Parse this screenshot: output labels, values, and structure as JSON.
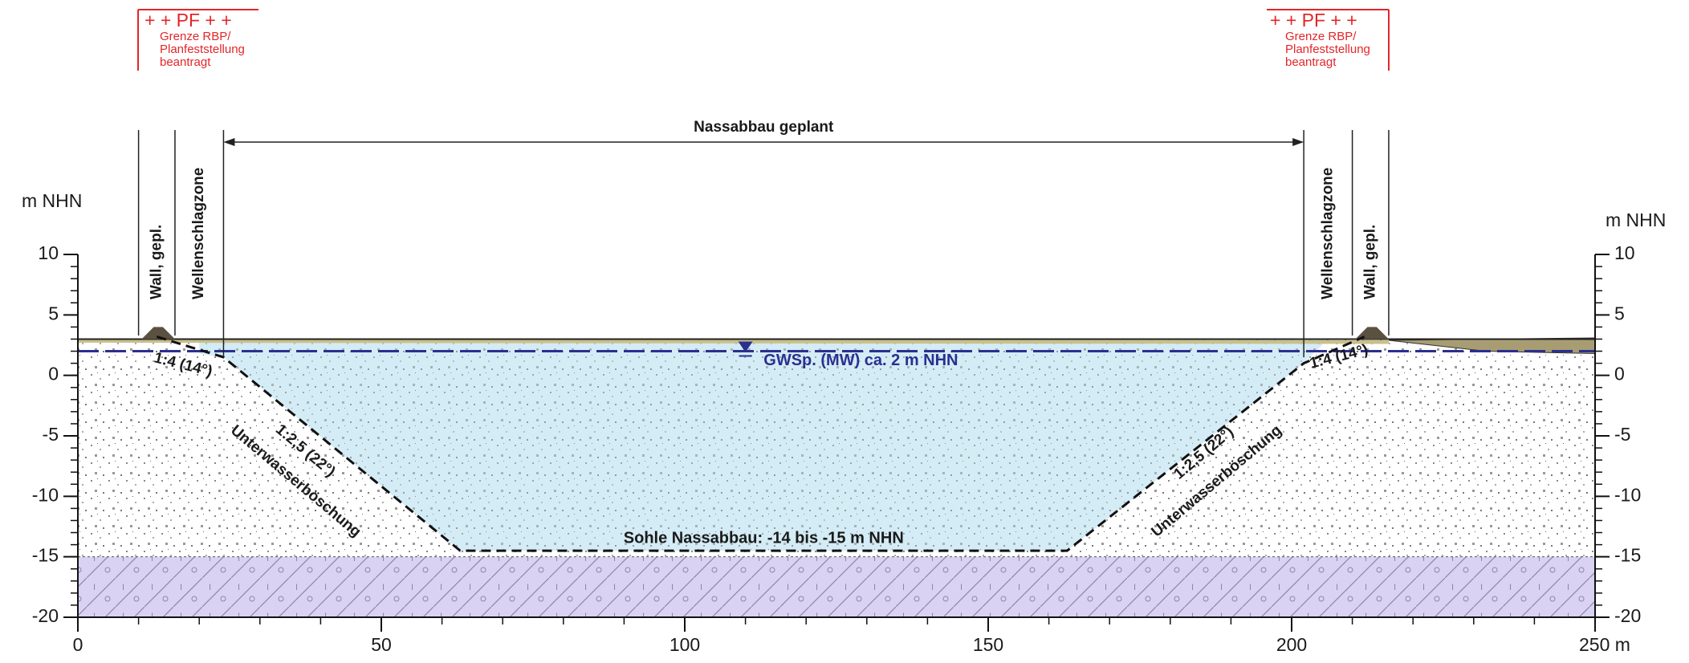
{
  "markers": [
    {
      "title": "+ + PF + +",
      "note": [
        "Grenze RBP/",
        "Planfeststellung",
        "beantragt"
      ]
    },
    {
      "title": "+ + PF + +",
      "note": [
        "Grenze RBP/",
        "Planfeststellung",
        "beantragt"
      ]
    }
  ],
  "zones": {
    "wall": "Wall, gepl.",
    "wave": "Wellenschlagzone"
  },
  "span_label": "Nassabbau geplant",
  "water_level": "GWSp. (MW) ca. 2 m NHN",
  "bottom_label": "Sohle Nassabbau: -14 bis -15 m NHN",
  "slopes": {
    "upper": "1:4 (14°)",
    "lower": "1:2,5 (22°)",
    "name": "Unterwasserböschung"
  },
  "axes": {
    "y_label": "m NHN",
    "ylim": [
      -20,
      10
    ],
    "yticks": [
      -20,
      -15,
      -10,
      -5,
      0,
      5,
      10
    ],
    "xlim": [
      0,
      250
    ],
    "xticks": [
      0,
      50,
      100,
      150,
      200,
      {
        "value": 250,
        "label": "250 m"
      }
    ]
  }
}
